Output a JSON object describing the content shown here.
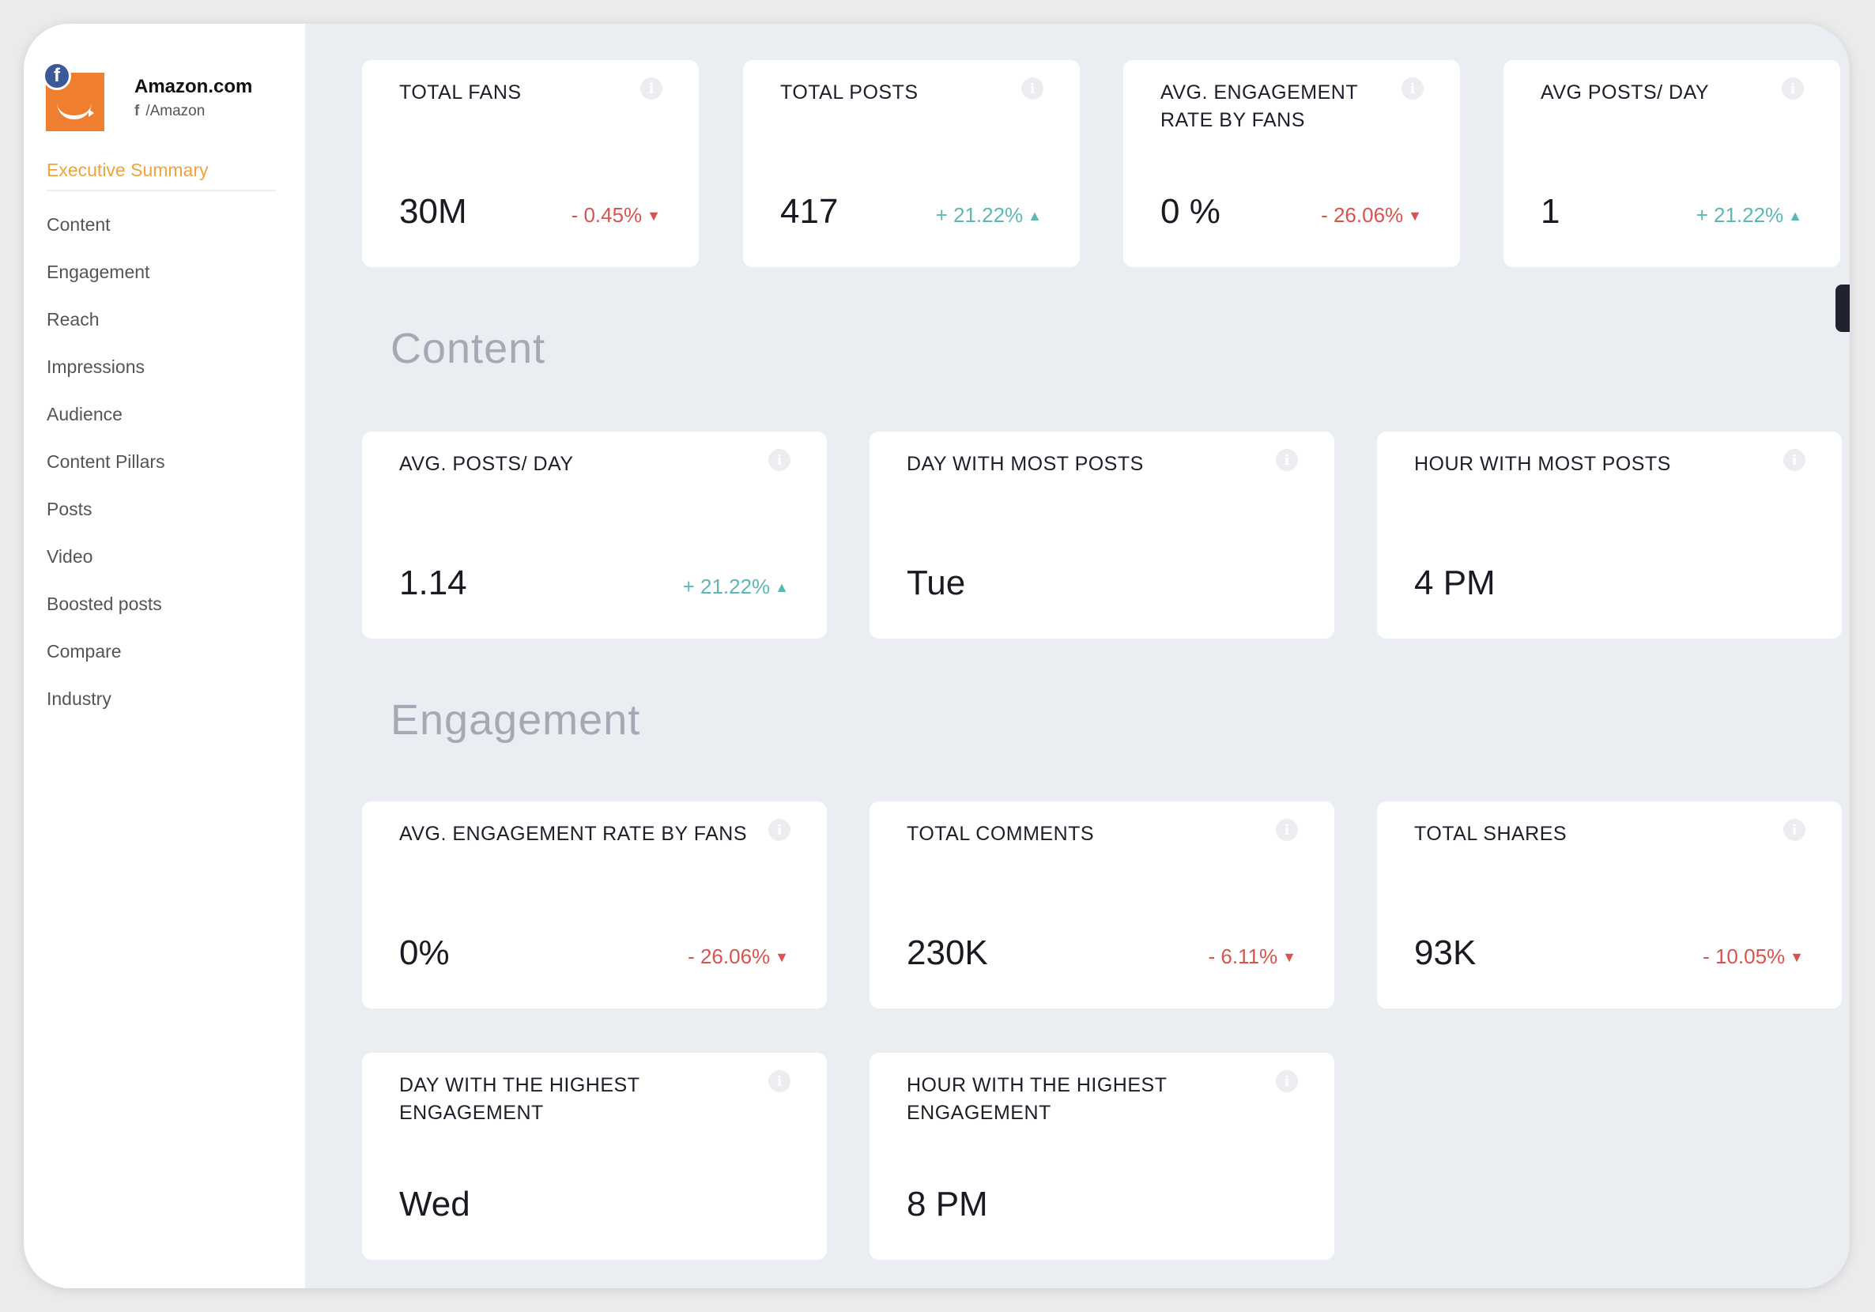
{
  "brand": {
    "name": "Amazon.com",
    "handle": "/Amazon",
    "network_badge": "f",
    "network_small": "f",
    "logo_color": "#f07e2f"
  },
  "sidebar": {
    "active": "Executive Summary",
    "items": [
      "Content",
      "Engagement",
      "Reach",
      "Impressions",
      "Audience",
      "Content Pillars",
      "Posts",
      "Video",
      "Boosted posts",
      "Compare",
      "Industry"
    ]
  },
  "summary": [
    {
      "title": "TOTAL FANS",
      "value": "30M",
      "change": "- 0.45%",
      "direction": "down"
    },
    {
      "title": "TOTAL POSTS",
      "value": "417",
      "change": "+ 21.22%",
      "direction": "up"
    },
    {
      "title": "AVG. ENGAGEMENT RATE BY FANS",
      "value": "0 %",
      "change": "- 26.06%",
      "direction": "down"
    },
    {
      "title": "AVG POSTS/ DAY",
      "value": "1",
      "change": "+ 21.22%",
      "direction": "up"
    }
  ],
  "content_section": {
    "title": "Content",
    "cards": [
      {
        "title": "AVG. POSTS/ DAY",
        "value": "1.14",
        "change": "+ 21.22%",
        "direction": "up"
      },
      {
        "title": "DAY WITH MOST POSTS",
        "value": "Tue"
      },
      {
        "title": "HOUR WITH MOST POSTS",
        "value": "4 PM"
      }
    ]
  },
  "engagement_section": {
    "title": "Engagement",
    "cards": [
      {
        "title": "AVG. ENGAGEMENT RATE BY FANS",
        "value": "0%",
        "change": "- 26.06%",
        "direction": "down"
      },
      {
        "title": "TOTAL COMMENTS",
        "value": "230K",
        "change": "- 6.11%",
        "direction": "down"
      },
      {
        "title": "TOTAL SHARES",
        "value": "93K",
        "change": "- 10.05%",
        "direction": "down"
      },
      {
        "title": "DAY WITH THE HIGHEST ENGAGEMENT",
        "value": "Wed"
      },
      {
        "title": "HOUR WITH THE HIGHEST ENGAGEMENT",
        "value": "8 PM"
      }
    ]
  },
  "icons": {
    "info": "i",
    "down_arrow": "▼",
    "up_arrow": "▲"
  },
  "colors": {
    "negative": "#d9534f",
    "positive": "#5bb8b4",
    "active_nav": "#f0a33b"
  }
}
